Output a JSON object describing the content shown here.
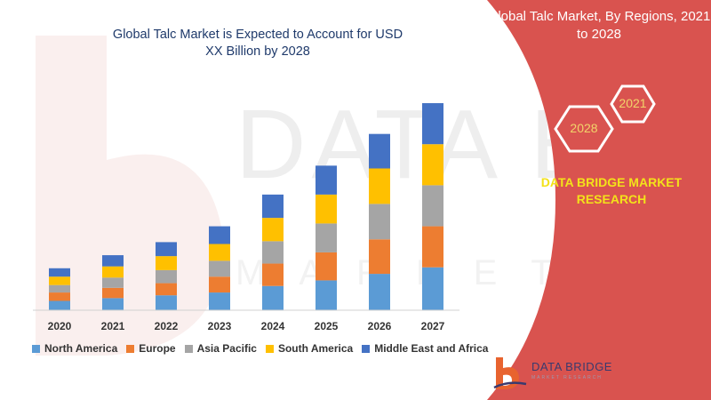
{
  "chart_title": "Global Talc Market is Expected to Account for USD XX Billion by 2028",
  "panel": {
    "title": "Global Talc Market, By Regions, 2021 to 2028",
    "hex_years": [
      "2021",
      "2028"
    ],
    "brand": "DATA BRIDGE MARKET RESEARCH"
  },
  "logo": {
    "name": "DATA BRIDGE",
    "tagline": "MARKET RESEARCH"
  },
  "colors": {
    "accent_red": "#d9534f",
    "brand_yellow": "#f3e21a",
    "hex_gold": "#f2d46a"
  },
  "chart_data": {
    "type": "bar",
    "stacked": true,
    "title": "Global Talc Market is Expected to Account for USD XX Billion by 2028",
    "xlabel": "",
    "ylabel": "",
    "categories": [
      "2020",
      "2021",
      "2022",
      "2023",
      "2024",
      "2025",
      "2026",
      "2027"
    ],
    "series": [
      {
        "name": "North America",
        "color": "#5b9bd5",
        "values": [
          10,
          13,
          16,
          19,
          26,
          32,
          39,
          46
        ]
      },
      {
        "name": "Europe",
        "color": "#ed7d31",
        "values": [
          9,
          11,
          13,
          17,
          24,
          30,
          37,
          44
        ]
      },
      {
        "name": "Asia Pacific",
        "color": "#a5a5a5",
        "values": [
          8,
          11,
          14,
          17,
          24,
          31,
          38,
          44
        ]
      },
      {
        "name": "South America",
        "color": "#ffc000",
        "values": [
          9,
          12,
          15,
          18,
          25,
          31,
          38,
          44
        ]
      },
      {
        "name": "Middle East and Africa",
        "color": "#4472c4",
        "values": [
          9,
          12,
          15,
          19,
          25,
          31,
          37,
          44
        ]
      }
    ],
    "grid": false,
    "legend": "bottom"
  }
}
